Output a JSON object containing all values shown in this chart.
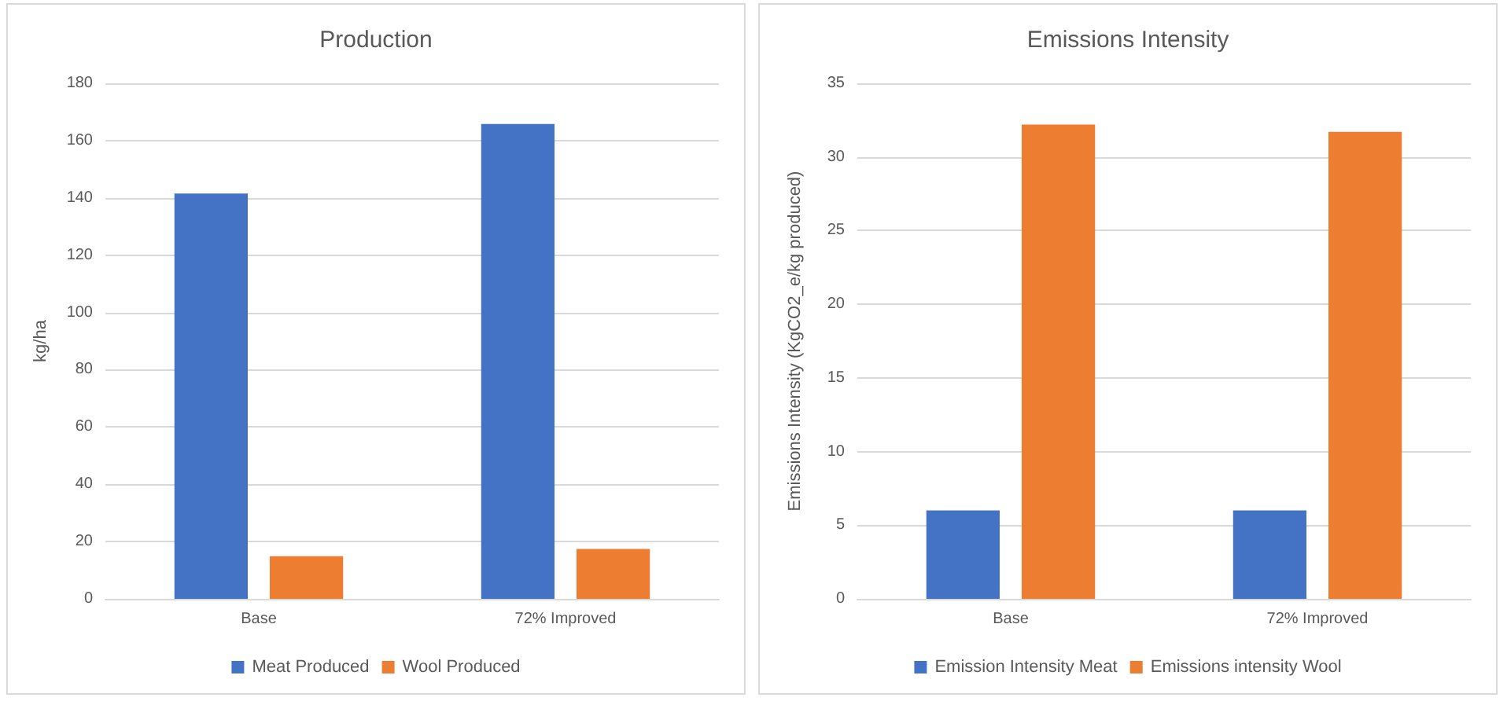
{
  "chart_data": [
    {
      "type": "bar",
      "title": "Production",
      "ylabel": "kg/ha",
      "categories": [
        "Base",
        "72% Improved"
      ],
      "series": [
        {
          "name": "Meat Produced",
          "color": "#4472c4",
          "values": [
            141.5,
            165.8
          ]
        },
        {
          "name": "Wool Produced",
          "color": "#ed7d31",
          "values": [
            14.9,
            17.4
          ]
        }
      ],
      "ylim": [
        0,
        180
      ],
      "yticks": [
        0,
        20,
        40,
        60,
        80,
        100,
        120,
        140,
        160,
        180
      ],
      "grid": "y",
      "legend": "bottom"
    },
    {
      "type": "bar",
      "title": "Emissions Intensity",
      "ylabel": "Emissions Intensity (KgCO2_e/kg produced)",
      "categories": [
        "Base",
        "72% Improved"
      ],
      "series": [
        {
          "name": "Emission Intensity Meat",
          "color": "#4472c4",
          "values": [
            6.0,
            6.0
          ]
        },
        {
          "name": "Emissions intensity Wool",
          "color": "#ed7d31",
          "values": [
            32.2,
            31.7
          ]
        }
      ],
      "ylim": [
        0,
        35
      ],
      "yticks": [
        0,
        5,
        10,
        15,
        20,
        25,
        30,
        35
      ],
      "grid": "y",
      "legend": "bottom"
    }
  ]
}
